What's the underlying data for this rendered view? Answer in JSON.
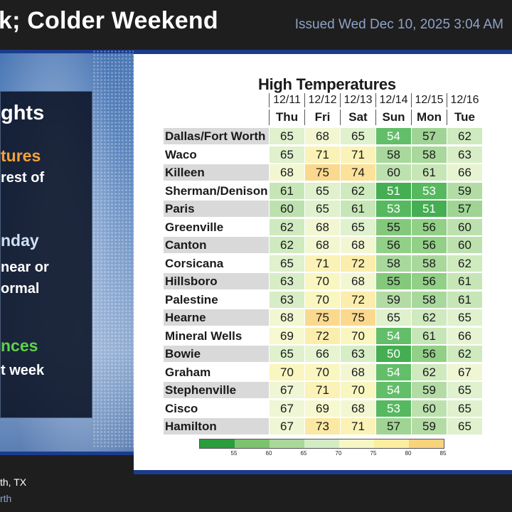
{
  "header": {
    "title": "k; Colder Weekend",
    "issued": "Issued Wed Dec 10, 2025 3:04 AM"
  },
  "highlights": {
    "title": "ghts",
    "h1": "tures",
    "t1": "rest of",
    "h2": "nday",
    "t2a": "near or",
    "t2b": "ormal",
    "h3": "nces",
    "t3": "t week",
    "colors": {
      "h1": "#f6a23a",
      "h2": "#cfe0f5",
      "h3": "#5fd34a"
    }
  },
  "footer": {
    "line1": "th, TX",
    "line2": "rth"
  },
  "table": {
    "title": "High Temperatures",
    "dates": [
      "12/11",
      "12/12",
      "12/13",
      "12/14",
      "12/15",
      "12/16"
    ],
    "days": [
      "Thu",
      "Fri",
      "Sat",
      "Sun",
      "Mon",
      "Tue"
    ],
    "rows": [
      {
        "city": "Dallas/Fort Worth",
        "temps": [
          65,
          68,
          65,
          54,
          57,
          62
        ]
      },
      {
        "city": "Waco",
        "temps": [
          65,
          71,
          71,
          58,
          58,
          63
        ]
      },
      {
        "city": "Killeen",
        "temps": [
          68,
          75,
          74,
          60,
          61,
          66
        ]
      },
      {
        "city": "Sherman/Denison",
        "temps": [
          61,
          65,
          62,
          51,
          53,
          59
        ]
      },
      {
        "city": "Paris",
        "temps": [
          60,
          65,
          61,
          53,
          51,
          57
        ]
      },
      {
        "city": "Greenville",
        "temps": [
          62,
          68,
          65,
          55,
          56,
          60
        ]
      },
      {
        "city": "Canton",
        "temps": [
          62,
          68,
          68,
          56,
          56,
          60
        ]
      },
      {
        "city": "Corsicana",
        "temps": [
          65,
          71,
          72,
          58,
          58,
          62
        ]
      },
      {
        "city": "Hillsboro",
        "temps": [
          63,
          70,
          68,
          55,
          56,
          61
        ]
      },
      {
        "city": "Palestine",
        "temps": [
          63,
          70,
          72,
          59,
          58,
          61
        ]
      },
      {
        "city": "Hearne",
        "temps": [
          68,
          75,
          75,
          65,
          62,
          65
        ]
      },
      {
        "city": "Mineral Wells",
        "temps": [
          69,
          72,
          70,
          54,
          61,
          66
        ]
      },
      {
        "city": "Bowie",
        "temps": [
          65,
          66,
          63,
          50,
          56,
          62
        ]
      },
      {
        "city": "Graham",
        "temps": [
          70,
          70,
          68,
          54,
          62,
          67
        ]
      },
      {
        "city": "Stephenville",
        "temps": [
          67,
          71,
          70,
          54,
          59,
          65
        ]
      },
      {
        "city": "Cisco",
        "temps": [
          67,
          69,
          68,
          53,
          60,
          65
        ]
      },
      {
        "city": "Hamilton",
        "temps": [
          67,
          73,
          71,
          57,
          59,
          65
        ]
      }
    ],
    "legend": {
      "labels": [
        "55",
        "60",
        "65",
        "70",
        "75",
        "80",
        "85"
      ],
      "colors": [
        "#2a9d3d",
        "#7cc36e",
        "#a9d89a",
        "#d3ecc4",
        "#f6f7c4",
        "#fbeea0",
        "#f9d37c"
      ]
    }
  }
}
